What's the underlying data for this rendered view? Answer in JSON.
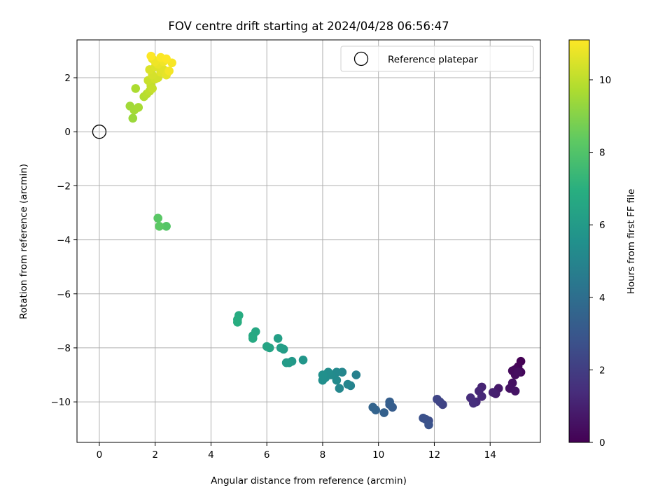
{
  "chart_data": {
    "type": "scatter",
    "title": "FOV centre drift starting at 2024/04/28 06:56:47",
    "xlabel": "Angular distance from reference (arcmin)",
    "ylabel": "Rotation from reference (arcmin)",
    "xlim": [
      -0.8,
      15.8
    ],
    "ylim": [
      -11.5,
      3.4
    ],
    "xticks": [
      0,
      2,
      4,
      6,
      8,
      10,
      12,
      14
    ],
    "yticks": [
      2,
      0,
      -2,
      -4,
      -6,
      -8,
      -10
    ],
    "grid": true,
    "legend": {
      "position": "top-right",
      "entries": [
        "Reference platepar"
      ]
    },
    "reference_point": {
      "x": 0,
      "y": 0
    },
    "colorbar": {
      "label": "Hours from first FF file",
      "colormap": "viridis",
      "range": [
        0,
        11.1
      ],
      "ticks": [
        0,
        2,
        4,
        6,
        8,
        10
      ]
    },
    "points": [
      [
        15.1,
        -8.5,
        0.0
      ],
      [
        15.0,
        -8.7,
        0.1
      ],
      [
        14.9,
        -8.8,
        0.2
      ],
      [
        15.1,
        -8.9,
        0.2
      ],
      [
        14.8,
        -8.85,
        0.3
      ],
      [
        14.9,
        -9.0,
        0.35
      ],
      [
        15.0,
        -8.9,
        0.4
      ],
      [
        14.8,
        -9.3,
        0.5
      ],
      [
        14.7,
        -9.5,
        0.55
      ],
      [
        14.9,
        -9.6,
        0.6
      ],
      [
        14.3,
        -9.5,
        0.8
      ],
      [
        14.2,
        -9.7,
        0.9
      ],
      [
        14.1,
        -9.65,
        1.0
      ],
      [
        13.7,
        -9.45,
        1.1
      ],
      [
        13.6,
        -9.6,
        1.2
      ],
      [
        13.7,
        -9.8,
        1.25
      ],
      [
        13.5,
        -10.0,
        1.3
      ],
      [
        13.3,
        -9.85,
        1.4
      ],
      [
        13.4,
        -10.05,
        1.45
      ],
      [
        12.3,
        -10.1,
        2.2
      ],
      [
        12.2,
        -10.0,
        2.25
      ],
      [
        12.1,
        -9.9,
        2.3
      ],
      [
        11.8,
        -10.7,
        2.6
      ],
      [
        11.7,
        -10.65,
        2.7
      ],
      [
        11.6,
        -10.6,
        2.75
      ],
      [
        11.8,
        -10.85,
        2.8
      ],
      [
        10.5,
        -10.2,
        3.2
      ],
      [
        10.4,
        -10.1,
        3.25
      ],
      [
        10.4,
        -10.0,
        3.3
      ],
      [
        10.2,
        -10.4,
        3.4
      ],
      [
        9.9,
        -10.3,
        3.5
      ],
      [
        9.8,
        -10.2,
        3.55
      ],
      [
        9.2,
        -9.0,
        4.8
      ],
      [
        9.0,
        -9.4,
        4.9
      ],
      [
        8.9,
        -9.35,
        5.0
      ],
      [
        8.7,
        -8.9,
        5.05
      ],
      [
        8.6,
        -9.5,
        5.1
      ],
      [
        8.5,
        -8.9,
        5.2
      ],
      [
        8.5,
        -9.2,
        5.25
      ],
      [
        8.3,
        -9.0,
        5.3
      ],
      [
        8.2,
        -8.9,
        5.35
      ],
      [
        8.1,
        -9.1,
        5.4
      ],
      [
        8.0,
        -9.2,
        5.45
      ],
      [
        8.0,
        -9.0,
        5.5
      ],
      [
        7.3,
        -8.45,
        5.8
      ],
      [
        6.9,
        -8.5,
        5.9
      ],
      [
        6.8,
        -8.55,
        6.0
      ],
      [
        6.7,
        -8.55,
        6.05
      ],
      [
        6.6,
        -8.05,
        6.1
      ],
      [
        6.5,
        -8.0,
        6.15
      ],
      [
        6.4,
        -7.65,
        6.2
      ],
      [
        6.1,
        -8.0,
        6.4
      ],
      [
        6.0,
        -7.95,
        6.45
      ],
      [
        5.6,
        -7.4,
        6.6
      ],
      [
        5.5,
        -7.55,
        6.65
      ],
      [
        5.5,
        -7.65,
        6.7
      ],
      [
        5.0,
        -6.8,
        6.8
      ],
      [
        4.95,
        -6.95,
        6.85
      ],
      [
        4.95,
        -7.05,
        6.9
      ],
      [
        2.4,
        -3.5,
        8.1
      ],
      [
        2.1,
        -3.2,
        8.2
      ],
      [
        2.15,
        -3.5,
        8.25
      ],
      [
        1.2,
        0.5,
        9.4
      ],
      [
        1.1,
        0.95,
        9.5
      ],
      [
        1.25,
        0.8,
        9.55
      ],
      [
        1.4,
        0.9,
        9.6
      ],
      [
        1.3,
        1.6,
        9.7
      ],
      [
        1.6,
        1.3,
        9.8
      ],
      [
        1.7,
        1.4,
        9.9
      ],
      [
        1.8,
        1.5,
        10.0
      ],
      [
        1.85,
        1.7,
        10.1
      ],
      [
        1.9,
        1.6,
        10.15
      ],
      [
        1.75,
        1.9,
        10.2
      ],
      [
        2.0,
        1.95,
        10.3
      ],
      [
        2.1,
        2.0,
        10.35
      ],
      [
        1.9,
        2.1,
        10.4
      ],
      [
        1.8,
        2.3,
        10.5
      ],
      [
        2.0,
        2.4,
        10.55
      ],
      [
        2.2,
        2.2,
        10.6
      ],
      [
        2.3,
        2.3,
        10.65
      ],
      [
        2.4,
        2.1,
        10.7
      ],
      [
        2.1,
        2.5,
        10.75
      ],
      [
        1.9,
        2.7,
        10.8
      ],
      [
        2.0,
        2.6,
        10.85
      ],
      [
        2.3,
        2.6,
        10.9
      ],
      [
        2.5,
        2.25,
        10.95
      ],
      [
        2.6,
        2.55,
        11.0
      ],
      [
        2.2,
        2.75,
        11.05
      ],
      [
        2.4,
        2.7,
        11.1
      ],
      [
        1.85,
        2.8,
        11.1
      ]
    ]
  }
}
